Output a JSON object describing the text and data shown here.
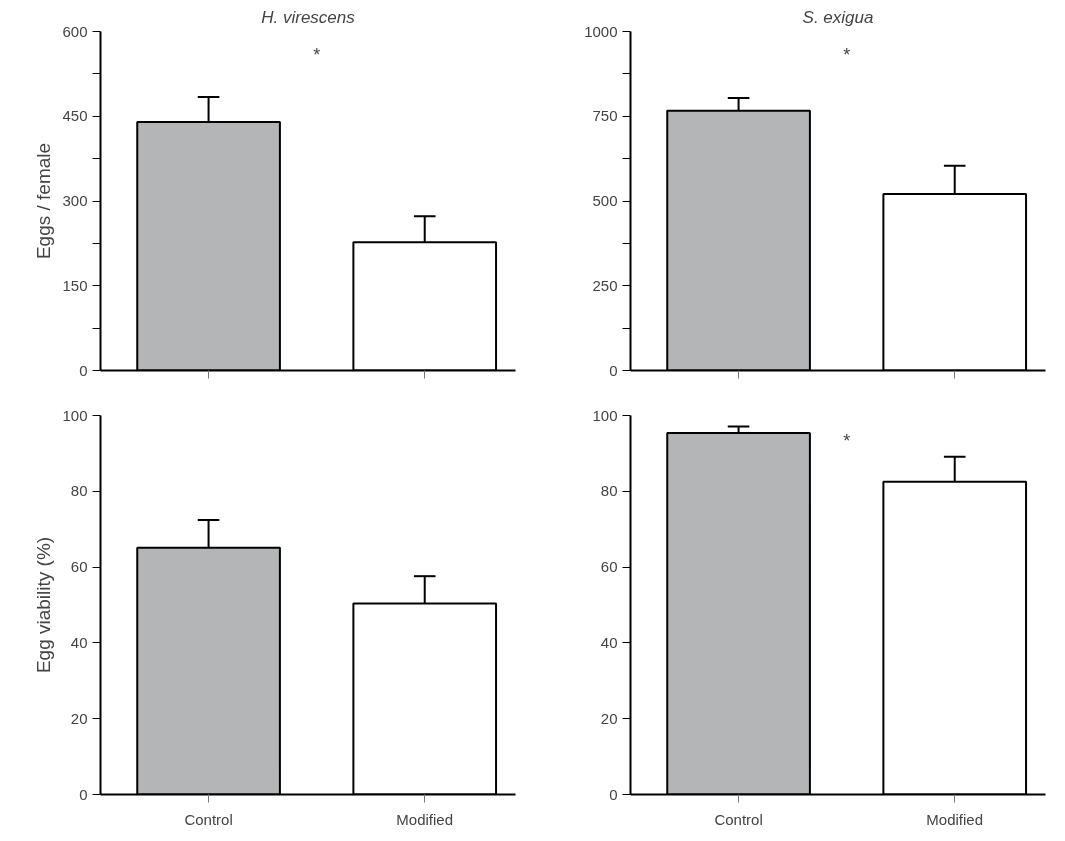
{
  "chart_data": [
    {
      "type": "bar",
      "title": "H. virescens",
      "ylabel": "Eggs / female",
      "categories": [
        null,
        null
      ],
      "values": [
        440,
        227
      ],
      "errors": [
        [
          440,
          484
        ],
        [
          227,
          273
        ]
      ],
      "colors": [
        "#b4b5b7",
        "#ffffff"
      ],
      "ylim": [
        0,
        600
      ],
      "yticks": [
        0,
        {
          "value": 75,
          "label": null
        },
        150,
        {
          "value": 225,
          "label": null
        },
        300,
        {
          "value": 375,
          "label": null
        },
        450,
        {
          "value": 525,
          "label": null
        },
        600
      ],
      "tick_labels": "y",
      "annotations": [
        "*"
      ]
    },
    {
      "type": "bar",
      "title": "S. exigua",
      "categories": [
        null,
        null
      ],
      "values": [
        766,
        521
      ],
      "errors": [
        [
          766,
          804
        ],
        [
          521,
          604
        ]
      ],
      "colors": [
        "#b4b5b7",
        "#ffffff"
      ],
      "ylim": [
        0,
        1000
      ],
      "yticks": [
        0,
        {
          "value": 125,
          "label": null
        },
        250,
        {
          "value": 375,
          "label": null
        },
        500,
        {
          "value": 625,
          "label": null
        },
        750,
        {
          "value": 875,
          "label": null
        },
        1000
      ],
      "tick_labels": "y",
      "annotations": [
        "*"
      ]
    },
    {
      "type": "bar",
      "ylabel": "Egg viability (%)",
      "categories": [
        "Control",
        "Modified"
      ],
      "values": [
        65.1,
        50.4
      ],
      "errors": [
        [
          65.1,
          72.4
        ],
        [
          50.4,
          57.6
        ]
      ],
      "colors": [
        "#b4b5b7",
        "#ffffff"
      ],
      "ylim": [
        0,
        100
      ],
      "yticks": [
        0,
        20,
        40,
        60,
        80,
        100
      ]
    },
    {
      "type": "bar",
      "categories": [
        "Control",
        "Modified"
      ],
      "values": [
        95.4,
        82.5
      ],
      "errors": [
        [
          95.4,
          97.1
        ],
        [
          82.5,
          89.1
        ]
      ],
      "colors": [
        "#b4b5b7",
        "#ffffff"
      ],
      "ylim": [
        0,
        100
      ],
      "yticks": [
        0,
        20,
        40,
        60,
        80,
        100
      ],
      "annotations": [
        "*"
      ]
    }
  ]
}
